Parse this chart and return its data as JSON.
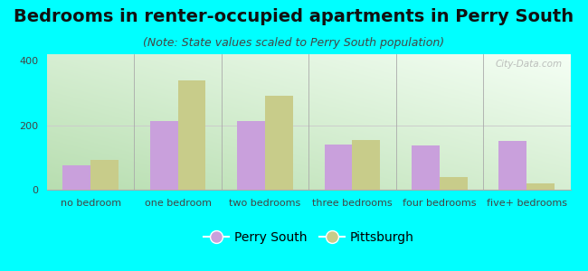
{
  "title": "Bedrooms in renter-occupied apartments in Perry South",
  "subtitle": "(Note: State values scaled to Perry South population)",
  "categories": [
    "no bedroom",
    "one bedroom",
    "two bedrooms",
    "three bedrooms",
    "four bedrooms",
    "five+ bedrooms"
  ],
  "perry_south": [
    75,
    212,
    212,
    140,
    138,
    152
  ],
  "pittsburgh": [
    92,
    340,
    290,
    155,
    38,
    20
  ],
  "perry_south_color": "#c9a0dc",
  "pittsburgh_color": "#c8cc8a",
  "background_color": "#00ffff",
  "ylim": [
    0,
    420
  ],
  "yticks": [
    0,
    200,
    400
  ],
  "bar_width": 0.32,
  "title_fontsize": 14,
  "subtitle_fontsize": 9,
  "tick_fontsize": 8,
  "legend_fontsize": 10
}
